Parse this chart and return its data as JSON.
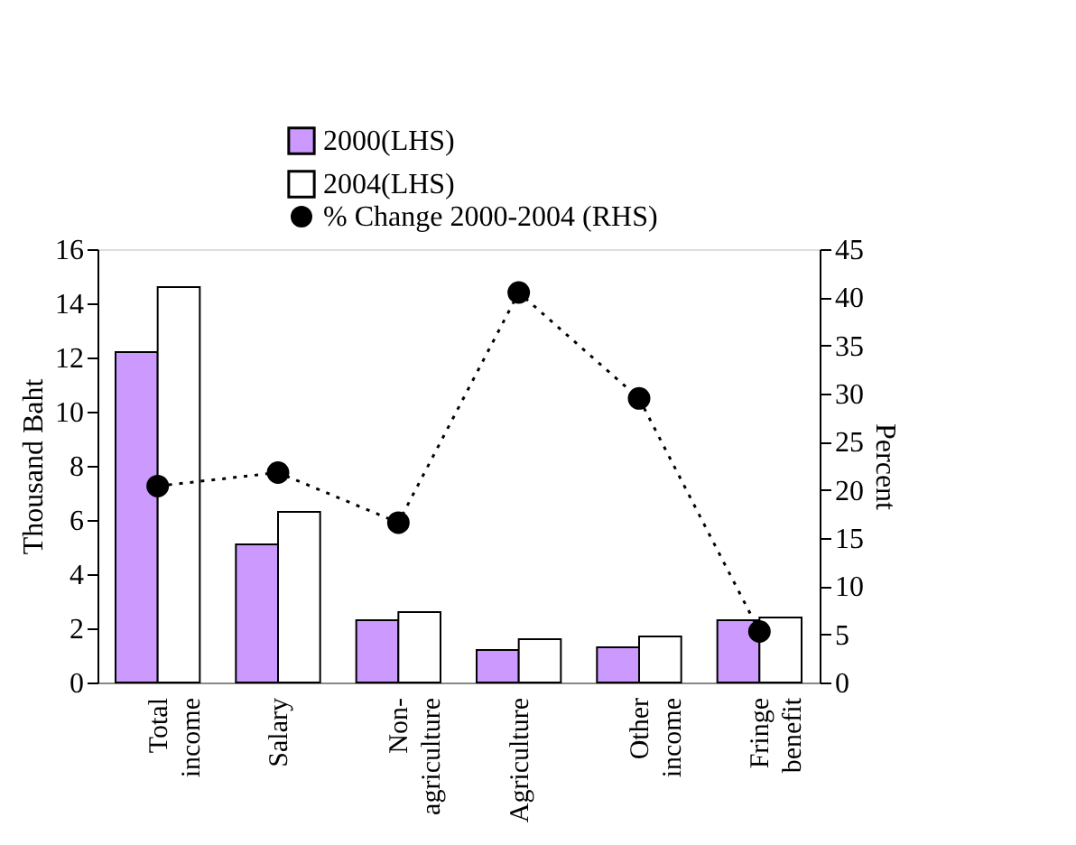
{
  "chart_data": {
    "type": "bar",
    "categories": [
      "Total income",
      "Salary",
      "Non-agriculture",
      "Agriculture",
      "Other income",
      "Fringe benefit"
    ],
    "series": [
      {
        "name": "2000(LHS)",
        "color": "#cc99ff",
        "values": [
          12.2,
          5.1,
          2.3,
          1.2,
          1.3,
          2.3
        ]
      },
      {
        "name": "2004(LHS)",
        "color": "#ffffff",
        "values": [
          14.6,
          6.3,
          2.6,
          1.6,
          1.7,
          2.4
        ]
      },
      {
        "name": "% Change 2000-2004 (RHS)",
        "type": "line",
        "axis": "y2",
        "color": "#000000",
        "marker": "circle",
        "line_style": "dotted",
        "values": [
          20.4,
          21.8,
          16.6,
          40.5,
          29.5,
          5.3
        ]
      }
    ],
    "ylabel": "Thousand Baht",
    "y2label": "Percent",
    "ylim": [
      0,
      16
    ],
    "yticks": [
      0,
      2,
      4,
      6,
      8,
      10,
      12,
      14,
      16
    ],
    "y2lim": [
      0,
      45
    ],
    "y2ticks": [
      0,
      5,
      10,
      15,
      20,
      25,
      30,
      35,
      40,
      45
    ],
    "grid": false,
    "legend": "top"
  }
}
